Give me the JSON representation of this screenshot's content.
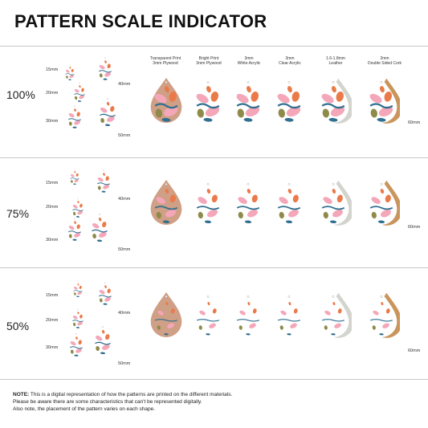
{
  "title": "PATTERN SCALE INDICATOR",
  "headers": [
    {
      "line1": "Transparent Print",
      "line2": "3mm Plywood"
    },
    {
      "line1": "Bright Print",
      "line2": "3mm Plywood"
    },
    {
      "line1": "3mm",
      "line2": "White Acrylic"
    },
    {
      "line1": "3mm",
      "line2": "Clear Acrylic"
    },
    {
      "line1": "1.6-1.8mm",
      "line2": "Leather"
    },
    {
      "line1": "2mm",
      "line2": "Double Sided Cork"
    }
  ],
  "rows": [
    {
      "scale": "100%",
      "size_small": "15mm",
      "size_medium": "20mm",
      "size_large": "30mm",
      "size_right_top": "40mm",
      "size_right_bottom": "50mm",
      "size_row_end": "60mm"
    },
    {
      "scale": "75%",
      "size_small": "15mm",
      "size_medium": "20mm",
      "size_large": "30mm",
      "size_right_top": "40mm",
      "size_right_bottom": "50mm",
      "size_row_end": "60mm"
    },
    {
      "scale": "50%",
      "size_small": "15mm",
      "size_medium": "20mm",
      "size_large": "30mm",
      "size_right_top": "40mm",
      "size_right_bottom": "50mm",
      "size_row_end": "60mm"
    }
  ],
  "note": {
    "label": "NOTE:",
    "line1": " This is a digital representation of how the patterns are printed on the different materials.",
    "line2": "Please be aware there are some characteristics that can't be represented digitally.",
    "line3": "Also note, the placement of the pattern varies on each shape."
  },
  "colors": {
    "plywood": "#cf9f86",
    "white": "#ffffff",
    "pink": "#f4a7b9",
    "orange": "#ea7a4a",
    "teal": "#2f6f8f",
    "olive": "#8e8a4a",
    "leather": "#d4d4cf",
    "cork": "#c9955c"
  }
}
